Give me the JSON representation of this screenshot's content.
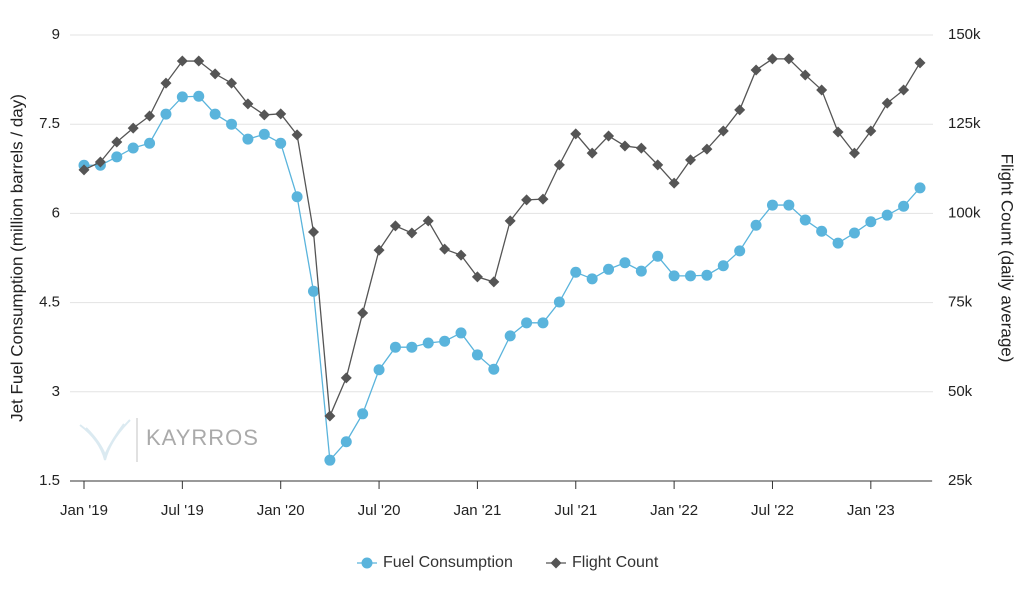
{
  "chart_data": {
    "type": "line",
    "y_label": "Jet Fuel Consumption (million barrels / day)",
    "y2_label": "Flight Count (daily average)",
    "watermark": "KAYRROS",
    "categories": [
      "Jan '19",
      null,
      null,
      null,
      null,
      null,
      "Jul '19",
      null,
      null,
      null,
      null,
      null,
      "Jan '20",
      null,
      null,
      null,
      null,
      null,
      "Jul '20",
      null,
      null,
      null,
      null,
      null,
      "Jan '21",
      null,
      null,
      null,
      null,
      null,
      "Jul '21",
      null,
      null,
      null,
      null,
      null,
      "Jan '22",
      null,
      null,
      null,
      null,
      null,
      "Jul '22",
      null,
      null,
      null,
      null,
      null,
      "Jan '23",
      null,
      null,
      null
    ],
    "series": [
      {
        "name": "Fuel Consumption",
        "color": "#5ab4dc",
        "marker": "circle",
        "values": [
          6.81,
          6.81,
          6.95,
          7.1,
          7.18,
          7.67,
          7.96,
          7.97,
          7.67,
          7.5,
          7.25,
          7.33,
          7.18,
          6.28,
          4.69,
          1.85,
          2.16,
          2.63,
          3.37,
          3.75,
          3.75,
          3.82,
          3.85,
          3.99,
          3.62,
          3.38,
          3.94,
          4.16,
          4.16,
          4.51,
          5.01,
          4.9,
          5.06,
          5.17,
          5.03,
          5.28,
          4.95,
          4.95,
          4.96,
          5.12,
          5.37,
          5.8,
          6.14,
          6.14,
          5.89,
          5.7,
          5.5,
          5.67,
          5.86,
          5.97,
          6.12,
          6.43
        ]
      },
      {
        "name": "Flight Count",
        "color": "#555555",
        "marker": "diamond",
        "axis": "y2",
        "values": [
          112200,
          114400,
          120000,
          123900,
          127300,
          136500,
          142700,
          142700,
          139100,
          136500,
          130700,
          127600,
          127900,
          122000,
          94800,
          43200,
          53900,
          72100,
          89700,
          96500,
          94500,
          97900,
          90000,
          88300,
          82200,
          80800,
          97900,
          103800,
          104000,
          113600,
          122300,
          116900,
          121700,
          118900,
          118300,
          113600,
          108500,
          115000,
          118000,
          123100,
          129000,
          140200,
          143300,
          143300,
          138800,
          134600,
          122800,
          116900,
          123100,
          130900,
          134600,
          142200
        ]
      }
    ],
    "ylim": [
      1.5,
      9
    ],
    "yticks": [
      1.5,
      3,
      4.5,
      6,
      7.5,
      9
    ],
    "y2lim": [
      25000,
      150000
    ],
    "y2ticks": [
      {
        "value": 25000,
        "label": "25k"
      },
      {
        "value": 50000,
        "label": "50k"
      },
      {
        "value": 75000,
        "label": "75k"
      },
      {
        "value": 100000,
        "label": "100k"
      },
      {
        "value": 125000,
        "label": "125k"
      },
      {
        "value": 150000,
        "label": "150k"
      }
    ],
    "grid": true,
    "legend": "bottom"
  }
}
